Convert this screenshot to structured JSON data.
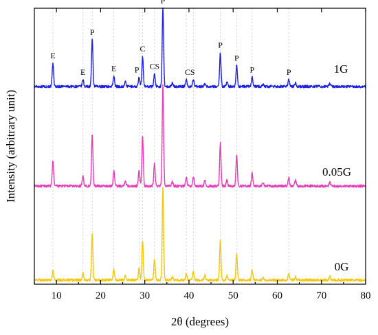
{
  "chart_data": {
    "type": "line",
    "xlabel": "2θ (degrees)",
    "ylabel": "Intensity (arbitrary unit)",
    "xlim": [
      5,
      80
    ],
    "xticks": [
      10,
      20,
      30,
      40,
      50,
      60,
      70,
      80
    ],
    "y_tick_labels": "none",
    "grid": "vertical dotted lines at main peak positions",
    "reference_lines_x": [
      9.2,
      16.0,
      18.1,
      23.0,
      28.7,
      29.5,
      32.2,
      34.1,
      39.4,
      41.0,
      47.1,
      50.8,
      54.3,
      62.6
    ],
    "series": [
      {
        "name": "1G",
        "color": "#1f1fe6",
        "baseline": 0,
        "peaks": [
          {
            "x": 9.2,
            "h": 0.2
          },
          {
            "x": 16.0,
            "h": 0.06
          },
          {
            "x": 18.1,
            "h": 0.4
          },
          {
            "x": 23.0,
            "h": 0.09
          },
          {
            "x": 25.6,
            "h": 0.04
          },
          {
            "x": 28.7,
            "h": 0.08
          },
          {
            "x": 29.5,
            "h": 0.26
          },
          {
            "x": 32.2,
            "h": 0.11
          },
          {
            "x": 34.1,
            "h": 0.67
          },
          {
            "x": 36.2,
            "h": 0.03
          },
          {
            "x": 39.4,
            "h": 0.06
          },
          {
            "x": 41.0,
            "h": 0.06
          },
          {
            "x": 43.6,
            "h": 0.03
          },
          {
            "x": 47.1,
            "h": 0.29
          },
          {
            "x": 48.6,
            "h": 0.04
          },
          {
            "x": 50.8,
            "h": 0.18
          },
          {
            "x": 54.3,
            "h": 0.08
          },
          {
            "x": 56.8,
            "h": 0.02
          },
          {
            "x": 62.6,
            "h": 0.06
          },
          {
            "x": 64.1,
            "h": 0.03
          },
          {
            "x": 71.9,
            "h": 0.03
          }
        ]
      },
      {
        "name": "0.05G",
        "color": "#e83bb8",
        "baseline": 0,
        "peaks": [
          {
            "x": 9.2,
            "h": 0.22
          },
          {
            "x": 16.0,
            "h": 0.09
          },
          {
            "x": 18.1,
            "h": 0.45
          },
          {
            "x": 23.0,
            "h": 0.13
          },
          {
            "x": 25.6,
            "h": 0.05
          },
          {
            "x": 28.7,
            "h": 0.14
          },
          {
            "x": 29.5,
            "h": 0.43
          },
          {
            "x": 32.2,
            "h": 0.2
          },
          {
            "x": 34.1,
            "h": 0.87
          },
          {
            "x": 36.2,
            "h": 0.04
          },
          {
            "x": 39.4,
            "h": 0.08
          },
          {
            "x": 41.0,
            "h": 0.08
          },
          {
            "x": 43.6,
            "h": 0.05
          },
          {
            "x": 47.1,
            "h": 0.37
          },
          {
            "x": 48.6,
            "h": 0.05
          },
          {
            "x": 50.8,
            "h": 0.26
          },
          {
            "x": 54.3,
            "h": 0.11
          },
          {
            "x": 56.8,
            "h": 0.03
          },
          {
            "x": 62.6,
            "h": 0.07
          },
          {
            "x": 64.1,
            "h": 0.05
          },
          {
            "x": 71.9,
            "h": 0.03
          }
        ]
      },
      {
        "name": "0G",
        "color": "#f2c70c",
        "baseline": 0,
        "peaks": [
          {
            "x": 9.2,
            "h": 0.08
          },
          {
            "x": 16.0,
            "h": 0.06
          },
          {
            "x": 18.1,
            "h": 0.4
          },
          {
            "x": 23.0,
            "h": 0.09
          },
          {
            "x": 25.6,
            "h": 0.04
          },
          {
            "x": 28.7,
            "h": 0.1
          },
          {
            "x": 29.5,
            "h": 0.34
          },
          {
            "x": 32.2,
            "h": 0.18
          },
          {
            "x": 34.1,
            "h": 0.8
          },
          {
            "x": 36.2,
            "h": 0.03
          },
          {
            "x": 39.4,
            "h": 0.06
          },
          {
            "x": 41.0,
            "h": 0.07
          },
          {
            "x": 43.6,
            "h": 0.04
          },
          {
            "x": 47.1,
            "h": 0.34
          },
          {
            "x": 48.6,
            "h": 0.04
          },
          {
            "x": 50.8,
            "h": 0.22
          },
          {
            "x": 54.3,
            "h": 0.09
          },
          {
            "x": 56.8,
            "h": 0.02
          },
          {
            "x": 62.6,
            "h": 0.06
          },
          {
            "x": 64.1,
            "h": 0.03
          },
          {
            "x": 71.9,
            "h": 0.03
          }
        ]
      }
    ],
    "peak_annotations": [
      {
        "text": "E",
        "x": 9.2
      },
      {
        "text": "E",
        "x": 16.0
      },
      {
        "text": "P",
        "x": 18.1
      },
      {
        "text": "E",
        "x": 23.0
      },
      {
        "text": "P",
        "x": 28.2
      },
      {
        "text": "C",
        "x": 29.5
      },
      {
        "text": "CS",
        "x": 32.2
      },
      {
        "text": "P",
        "x": 34.1
      },
      {
        "text": "CS",
        "x": 40.2
      },
      {
        "text": "P",
        "x": 47.1
      },
      {
        "text": "P",
        "x": 50.8
      },
      {
        "text": "P",
        "x": 54.3
      },
      {
        "text": "P",
        "x": 62.6
      }
    ]
  }
}
